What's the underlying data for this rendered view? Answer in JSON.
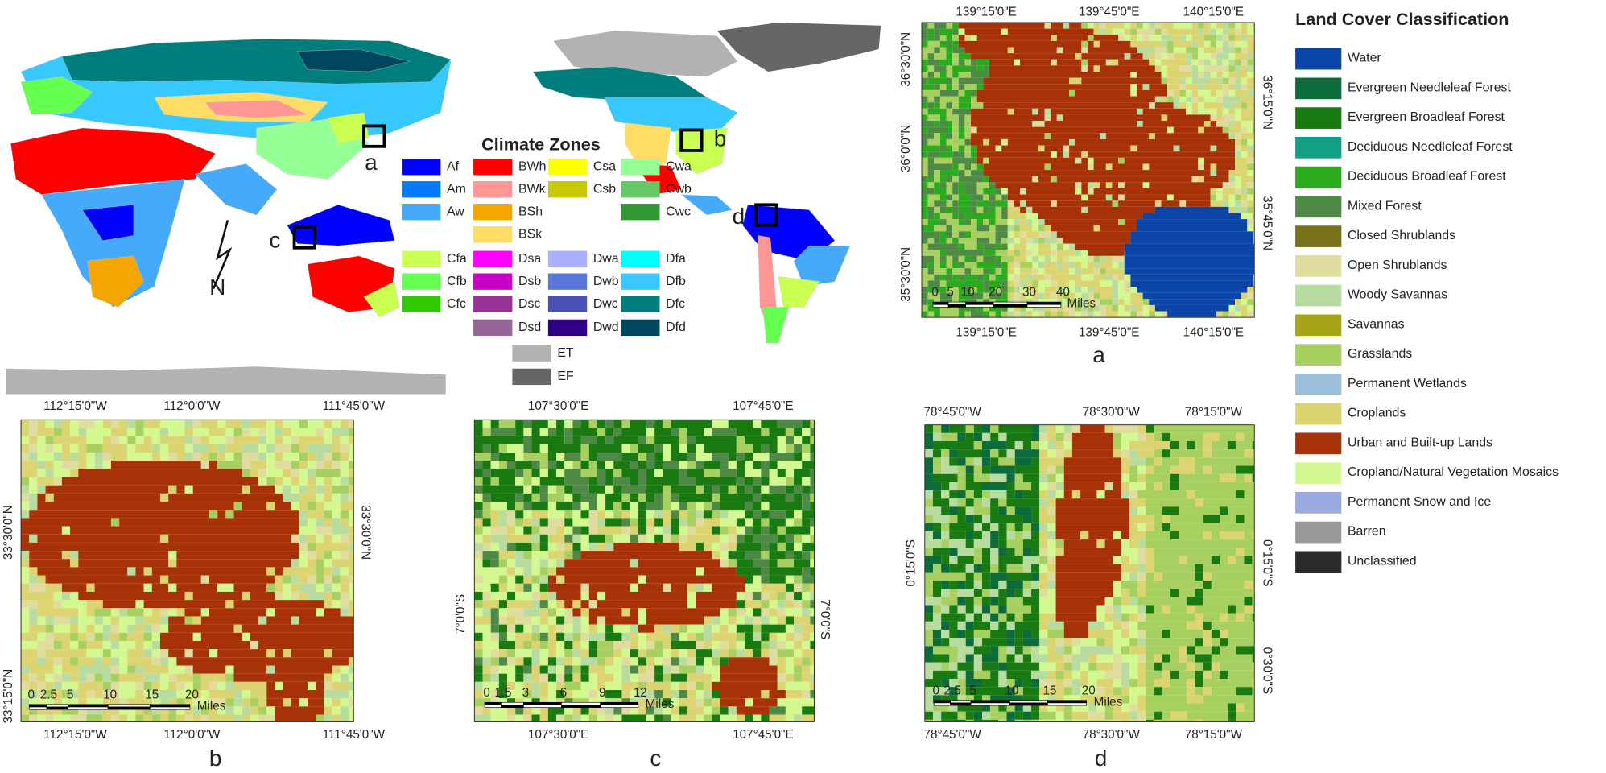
{
  "climate_legend": {
    "title": "Climate Zones",
    "items": [
      {
        "label": "Af",
        "color": "#0000fe"
      },
      {
        "label": "Am",
        "color": "#0078ff"
      },
      {
        "label": "Aw",
        "color": "#46aafa"
      },
      {
        "label": "BWh",
        "color": "#ff0000"
      },
      {
        "label": "BWk",
        "color": "#ff9696"
      },
      {
        "label": "BSh",
        "color": "#f5a500"
      },
      {
        "label": "BSk",
        "color": "#ffdc64"
      },
      {
        "label": "Csa",
        "color": "#ffff00"
      },
      {
        "label": "Csb",
        "color": "#c8c800"
      },
      {
        "label": "Cwa",
        "color": "#96ff96"
      },
      {
        "label": "Cwb",
        "color": "#64c864"
      },
      {
        "label": "Cwc",
        "color": "#329632"
      },
      {
        "label": "Cfa",
        "color": "#c8ff50"
      },
      {
        "label": "Cfb",
        "color": "#64ff50"
      },
      {
        "label": "Cfc",
        "color": "#32c800"
      },
      {
        "label": "Dsa",
        "color": "#ff00ff"
      },
      {
        "label": "Dsb",
        "color": "#c800c8"
      },
      {
        "label": "Dsc",
        "color": "#963296"
      },
      {
        "label": "Dsd",
        "color": "#966496"
      },
      {
        "label": "Dwa",
        "color": "#aaafff"
      },
      {
        "label": "Dwb",
        "color": "#5a78dc"
      },
      {
        "label": "Dwc",
        "color": "#4b50b4"
      },
      {
        "label": "Dwd",
        "color": "#320087"
      },
      {
        "label": "Dfa",
        "color": "#00ffff"
      },
      {
        "label": "Dfb",
        "color": "#37c8ff"
      },
      {
        "label": "Dfc",
        "color": "#007d7d"
      },
      {
        "label": "Dfd",
        "color": "#00465f"
      },
      {
        "label": "ET",
        "color": "#b2b2b2"
      },
      {
        "label": "EF",
        "color": "#666666"
      }
    ]
  },
  "world_map": {
    "markers": [
      "a",
      "b",
      "c",
      "d"
    ],
    "north_arrow": "N"
  },
  "land_cover_legend": {
    "title": "Land Cover Classification",
    "items": [
      {
        "label": "Water",
        "color": "#0b45a8"
      },
      {
        "label": "Evergreen Needleleaf Forest",
        "color": "#0b6b3a"
      },
      {
        "label": "Evergreen Broadleaf Forest",
        "color": "#1a7a12"
      },
      {
        "label": "Deciduous Needleleaf Forest",
        "color": "#12a085"
      },
      {
        "label": "Deciduous Broadleaf Forest",
        "color": "#2aaa1d"
      },
      {
        "label": "Mixed Forest",
        "color": "#4e8a46"
      },
      {
        "label": "Closed Shrublands",
        "color": "#76721a"
      },
      {
        "label": "Open Shrublands",
        "color": "#e0dca0"
      },
      {
        "label": "Woody Savannas",
        "color": "#b8dca0"
      },
      {
        "label": "Savannas",
        "color": "#a8a418"
      },
      {
        "label": "Grasslands",
        "color": "#a8d060"
      },
      {
        "label": "Permanent Wetlands",
        "color": "#9cc0dc"
      },
      {
        "label": "Croplands",
        "color": "#dcd470"
      },
      {
        "label": "Urban and Built-up Lands",
        "color": "#a83208"
      },
      {
        "label": "Cropland/Natural Vegetation Mosaics",
        "color": "#d4f890"
      },
      {
        "label": "Permanent Snow and Ice",
        "color": "#9aaae0"
      },
      {
        "label": "Barren",
        "color": "#999999"
      },
      {
        "label": "Unclassified",
        "color": "#2a2a2a"
      }
    ]
  },
  "panels": [
    {
      "label": "a",
      "top_ticks": [
        "139°15'0\"E",
        "139°45'0\"E",
        "140°15'0\"E"
      ],
      "bottom_ticks": [
        "139°15'0\"E",
        "139°45'0\"E",
        "140°15'0\"E"
      ],
      "left_ticks": [
        "36°30'0\"N",
        "36°0'0\"N",
        "35°30'0\"N"
      ],
      "right_ticks": [
        "36°15'0\"N",
        "35°45'0\"N"
      ],
      "scale_ticks": [
        "0",
        "5",
        "10",
        "20",
        "30",
        "40"
      ],
      "scale_unit": "Miles"
    },
    {
      "label": "b",
      "top_ticks": [
        "112°15'0\"W",
        "112°0'0\"W",
        "111°45'0\"W"
      ],
      "bottom_ticks": [
        "112°15'0\"W",
        "112°0'0\"W",
        "111°45'0\"W"
      ],
      "left_ticks": [
        "33°30'0\"N",
        "33°15'0\"N"
      ],
      "right_ticks": [
        "33°30'0\"N"
      ],
      "scale_ticks": [
        "0",
        "2.5",
        "5",
        "10",
        "15",
        "20"
      ],
      "scale_unit": "Miles"
    },
    {
      "label": "c",
      "top_ticks": [
        "107°30'0\"E",
        "107°45'0\"E"
      ],
      "bottom_ticks": [
        "107°30'0\"E",
        "107°45'0\"E"
      ],
      "left_ticks": [
        "7°0'0\"S"
      ],
      "right_ticks": [
        "7°0'0\"S"
      ],
      "scale_ticks": [
        "0",
        "1.5",
        "3",
        "6",
        "9",
        "12"
      ],
      "scale_unit": "Miles"
    },
    {
      "label": "d",
      "top_ticks": [
        "78°45'0\"W",
        "78°30'0\"W",
        "78°15'0\"W"
      ],
      "bottom_ticks": [
        "78°45'0\"W",
        "78°30'0\"W",
        "78°15'0\"W"
      ],
      "left_ticks": [
        "0°15'0\"S"
      ],
      "right_ticks": [
        "0°15'0\"S",
        "0°30'0\"S"
      ],
      "scale_ticks": [
        "0",
        "2.5",
        "5",
        "10",
        "15",
        "20"
      ],
      "scale_unit": "Miles"
    }
  ]
}
